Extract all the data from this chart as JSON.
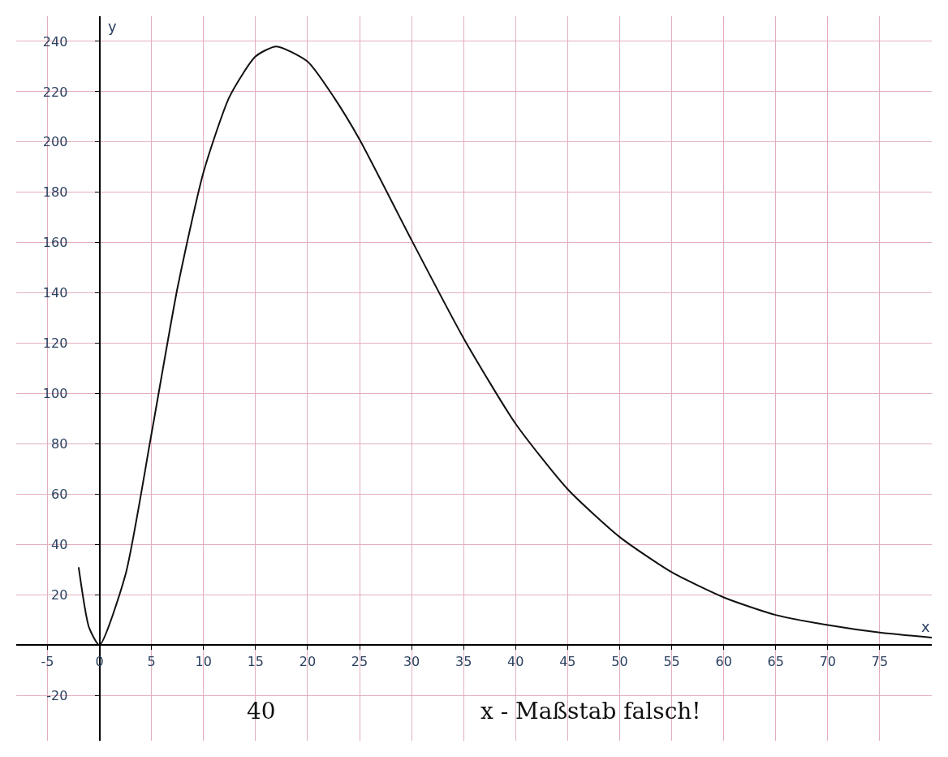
{
  "chart_data": {
    "type": "line",
    "xlabel": "x",
    "ylabel": "y",
    "x": [
      -2,
      -1,
      0,
      2.5,
      5,
      7.5,
      10,
      12.5,
      15,
      17,
      20,
      22.5,
      25,
      30,
      35,
      40,
      45,
      50,
      55,
      60,
      65,
      70,
      75,
      80
    ],
    "series": [
      {
        "color": "#111111",
        "values": [
          31,
          7,
          0,
          28,
          84,
          142,
          188,
          218,
          234,
          238,
          232,
          218,
          201,
          161,
          122,
          88,
          62,
          43,
          29,
          19,
          12,
          8,
          5,
          3
        ]
      }
    ],
    "xlim": [
      -8,
      80
    ],
    "ylim": [
      -38,
      250
    ],
    "xticks": [
      -5,
      0,
      5,
      10,
      15,
      20,
      25,
      30,
      35,
      40,
      45,
      50,
      55,
      60,
      65,
      70,
      75
    ],
    "yticks": [
      -20,
      20,
      40,
      60,
      80,
      100,
      120,
      140,
      160,
      180,
      200,
      220,
      240
    ],
    "grid": true,
    "marker": "none",
    "line_style": "solid",
    "annotations": [
      "40",
      "x - Maßstab falsch!"
    ]
  }
}
